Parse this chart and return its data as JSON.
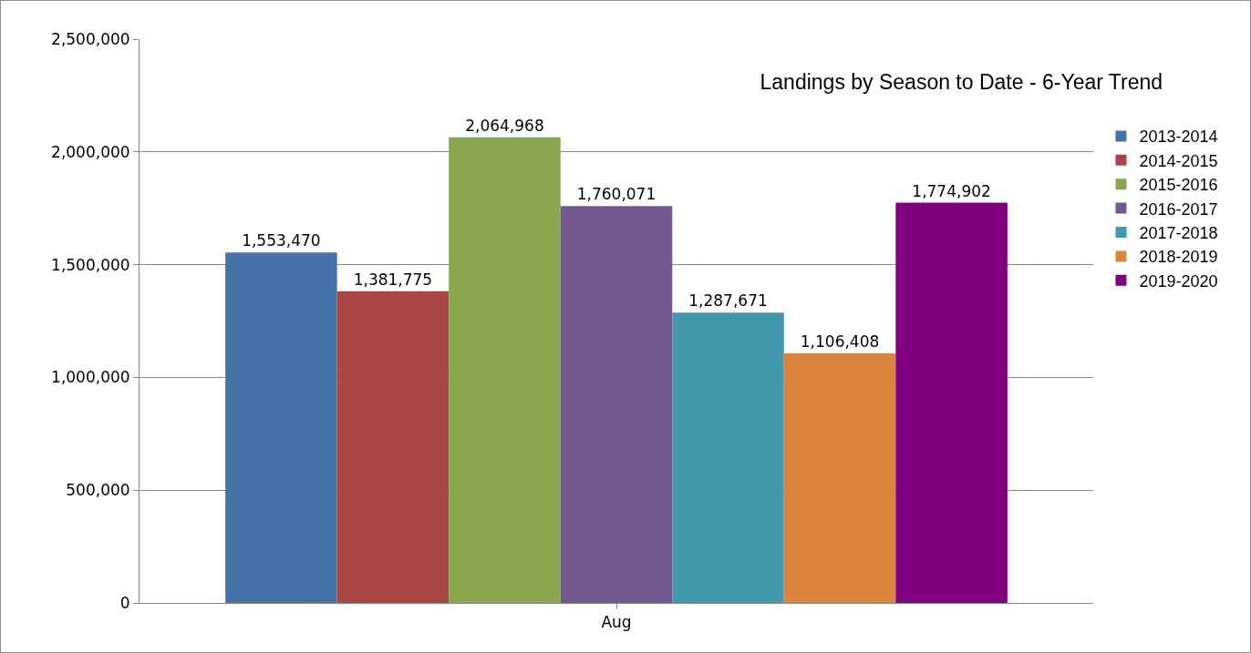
{
  "chart_data": {
    "type": "bar",
    "title": "Landings by Season to Date - 6-Year Trend",
    "categories": [
      "Aug"
    ],
    "series": [
      {
        "name": "2013-2014",
        "color": "#4572a7",
        "values": [
          1553470
        ],
        "value_labels": [
          "1,553,470"
        ]
      },
      {
        "name": "2014-2015",
        "color": "#aa4643",
        "values": [
          1381775
        ],
        "value_labels": [
          "1,381,775"
        ]
      },
      {
        "name": "2015-2016",
        "color": "#89a54e",
        "values": [
          2064968
        ],
        "value_labels": [
          "2,064,968"
        ]
      },
      {
        "name": "2016-2017",
        "color": "#71588f",
        "values": [
          1760071
        ],
        "value_labels": [
          "1,760,071"
        ]
      },
      {
        "name": "2017-2018",
        "color": "#4198af",
        "values": [
          1287671
        ],
        "value_labels": [
          "1,287,671"
        ]
      },
      {
        "name": "2018-2019",
        "color": "#db843d",
        "values": [
          1106408
        ],
        "value_labels": [
          "1,106,408"
        ]
      },
      {
        "name": "2019-2020",
        "color": "#80007f",
        "values": [
          1774902
        ],
        "value_labels": [
          "1,774,902"
        ]
      }
    ],
    "ylim": [
      0,
      2500000
    ],
    "yticks": [
      {
        "value": 0,
        "label": "0"
      },
      {
        "value": 500000,
        "label": "500,000"
      },
      {
        "value": 1000000,
        "label": "1,000,000"
      },
      {
        "value": 1500000,
        "label": "1,500,000"
      },
      {
        "value": 2000000,
        "label": "2,000,000"
      },
      {
        "value": 2500000,
        "label": "2,500,000"
      }
    ],
    "grid": "y",
    "legend": "right"
  }
}
